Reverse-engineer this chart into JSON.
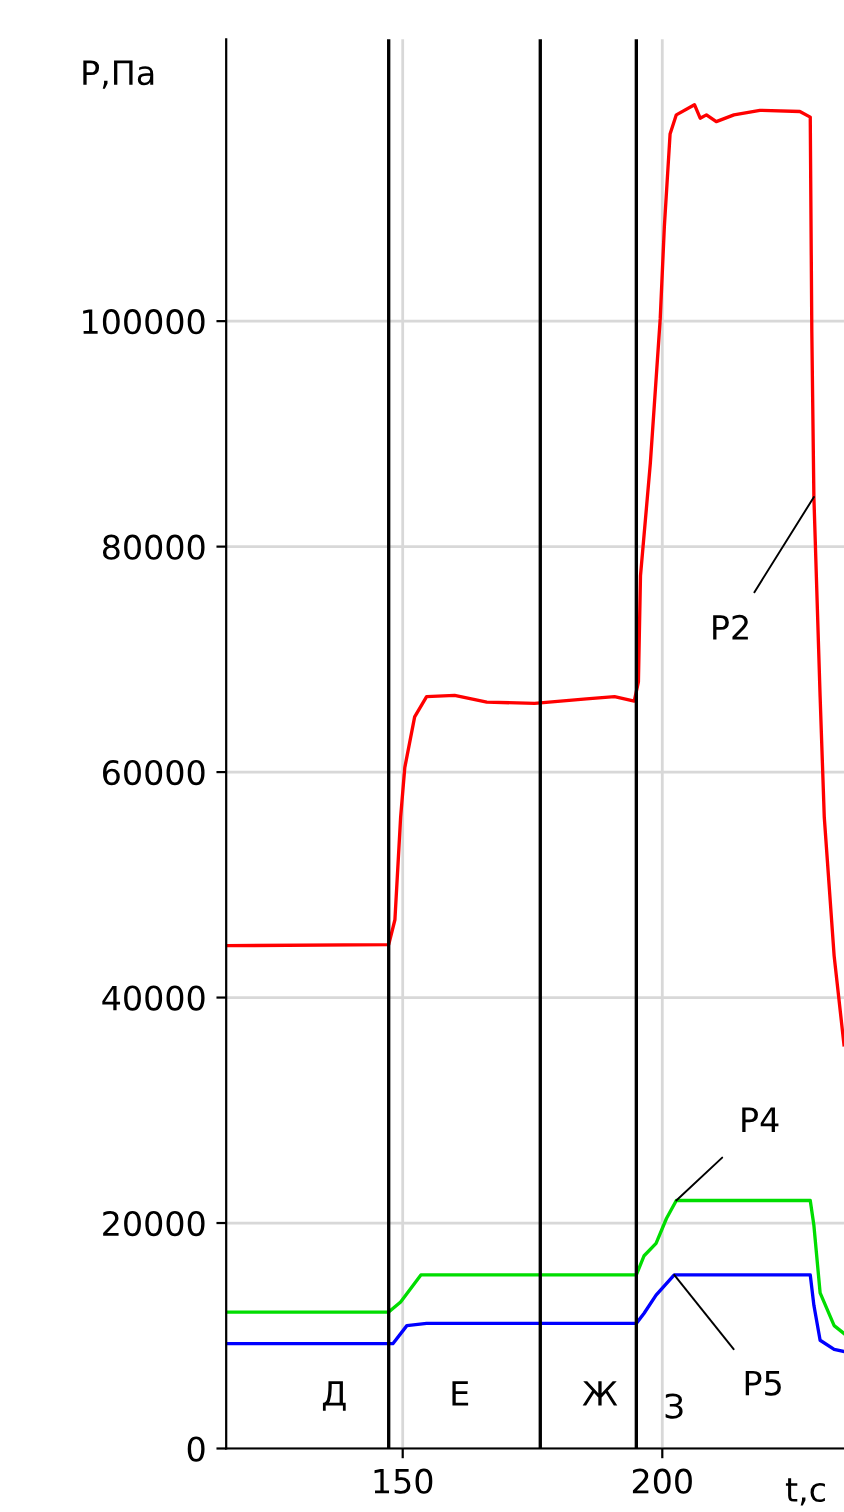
{
  "chart_data": {
    "type": "line",
    "ylabel": "P,Па",
    "xlabel": "t,c",
    "xlim": [
      116,
      235
    ],
    "xticks": [
      150,
      200
    ],
    "ylim": [
      0,
      125000
    ],
    "yticks": [
      0,
      20000,
      40000,
      60000,
      80000,
      100000
    ],
    "grid": true,
    "legend": false,
    "marker": "none",
    "line_style": "solid",
    "series": [
      {
        "name": "P2",
        "color": "#ff0000",
        "x": [
          116.2,
          147.3,
          148.5,
          149.6,
          150.4,
          152.3,
          154.6,
          160,
          166.2,
          175.4,
          185.4,
          190.8,
          194.6,
          195.4,
          195.8,
          197.7,
          199.6,
          200.4,
          201.5,
          202.7,
          206.2,
          207.3,
          208.5,
          210.4,
          213.8,
          218.8,
          226.5,
          228.5,
          228.8,
          229.2,
          230.4,
          231.2,
          233.1,
          235
        ],
        "values": [
          44600,
          44700,
          46900,
          56000,
          60400,
          64900,
          66700,
          66800,
          66200,
          66100,
          66500,
          66700,
          66300,
          68000,
          77400,
          87400,
          100200,
          108400,
          116600,
          118300,
          119200,
          118000,
          118300,
          117700,
          118300,
          118700,
          118600,
          118100,
          99100,
          84400,
          66700,
          56000,
          43700,
          35800
        ]
      },
      {
        "name": "P4",
        "color": "#00dd00",
        "x": [
          116.2,
          147.3,
          149.6,
          153.5,
          195,
          196.5,
          198.8,
          200.8,
          202.7,
          228.5,
          229.2,
          230.4,
          233.1,
          235
        ],
        "values": [
          12100,
          12100,
          13000,
          15400,
          15400,
          17100,
          18200,
          20400,
          22000,
          22000,
          19800,
          13800,
          10900,
          10200
        ]
      },
      {
        "name": "P5",
        "color": "#0000ff",
        "x": [
          116.2,
          148.1,
          150.8,
          154.6,
          195,
          196.5,
          198.8,
          202.3,
          228.5,
          229.2,
          230.4,
          233.1,
          235
        ],
        "values": [
          9300,
          9300,
          10900,
          11100,
          11100,
          12000,
          13600,
          15400,
          15400,
          12700,
          9600,
          8800,
          8600
        ]
      }
    ],
    "ref_lines": [
      {
        "axis": "x",
        "value": 147.3,
        "color": "#000000"
      },
      {
        "axis": "x",
        "value": 176.5,
        "color": "#000000"
      },
      {
        "axis": "x",
        "value": 195,
        "color": "#000000"
      }
    ],
    "annotations": [
      "Д",
      "Е",
      "Ж",
      "З"
    ]
  }
}
